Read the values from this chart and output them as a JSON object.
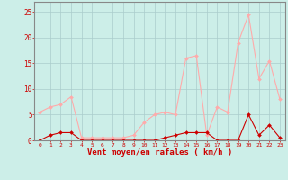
{
  "hours": [
    0,
    1,
    2,
    3,
    4,
    5,
    6,
    7,
    8,
    9,
    10,
    11,
    12,
    13,
    14,
    15,
    16,
    17,
    18,
    19,
    20,
    21,
    22,
    23
  ],
  "mean_wind": [
    0,
    1,
    1.5,
    1.5,
    0,
    0,
    0,
    0,
    0,
    0,
    0,
    0,
    0.5,
    1,
    1.5,
    1.5,
    1.5,
    0,
    0,
    0,
    5,
    1,
    3,
    0.5
  ],
  "gust_wind": [
    5.5,
    6.5,
    7,
    8.5,
    0.5,
    0.5,
    0.5,
    0.5,
    0.5,
    1,
    3.5,
    5,
    5.5,
    5,
    16,
    16.5,
    1,
    6.5,
    5.5,
    19,
    24.5,
    12,
    15.5,
    8
  ],
  "mean_color": "#cc0000",
  "gust_color": "#ffaaaa",
  "bg_color": "#cceee8",
  "grid_color": "#aacccc",
  "xlabel": "Vent moyen/en rafales ( km/h )",
  "xlabel_color": "#cc0000",
  "ylabel_ticks": [
    0,
    5,
    10,
    15,
    20,
    25
  ],
  "ylim": [
    0,
    27
  ],
  "xlim": [
    -0.5,
    23.5
  ],
  "tick_color": "#cc0000",
  "spine_color": "#888888",
  "markersize": 2.0
}
